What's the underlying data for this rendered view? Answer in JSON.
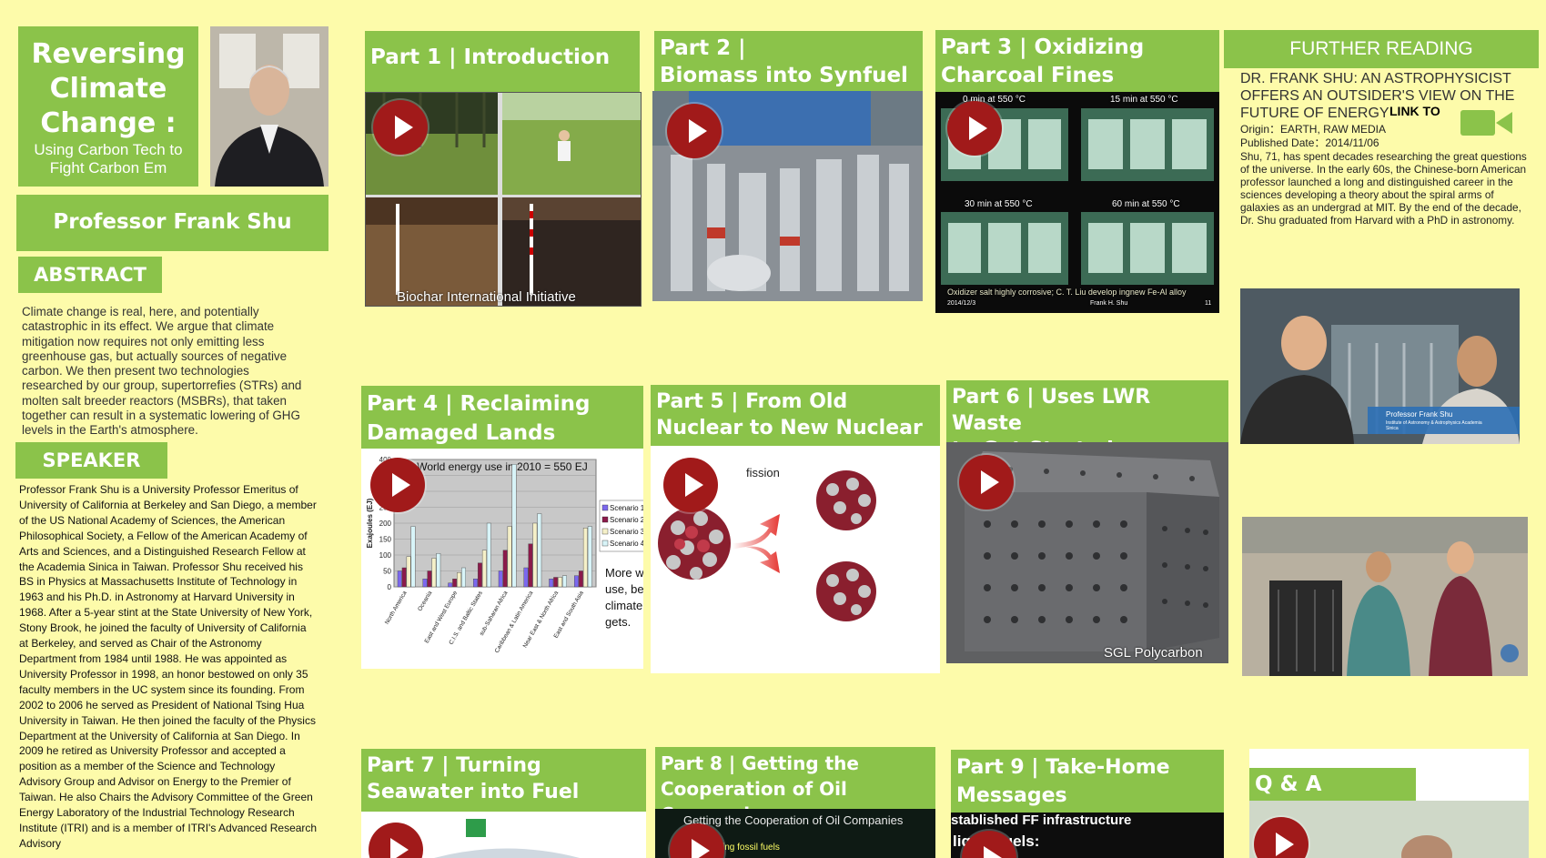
{
  "title": {
    "line1": "Reversing",
    "line2": "Climate",
    "line3": "Change :",
    "subtitle": "Using Carbon Tech to Fight Carbon Em"
  },
  "speaker_name": "Professor Frank Shu",
  "abstract": {
    "heading": "ABSTRACT",
    "text": "Climate change is real, here, and potentially catastrophic in its effect. We argue that climate mitigation now requires not only emitting less greenhouse gas, but actually sources of negative carbon. We then present two technologies researched by our group, supertorrefies (STRs) and molten salt breeder reactors (MSBRs), that taken together can result in a systematic lowering of GHG levels in the Earth's atmosphere."
  },
  "speaker": {
    "heading": "SPEAKER",
    "bio": "Professor Frank Shu is a University Professor Emeritus of University of California at Berkeley and San Diego, a member of the US National Academy of Sciences, the American Philosophical Society, a Fellow of the American Academy of Arts and Sciences, and a Distinguished Research Fellow at the Academia Sinica in Taiwan. Professor Shu received his BS in Physics at Massachusetts Institute of Technology in 1963 and his Ph.D. in Astronomy at Harvard University in 1968. After a 5-year stint at the State University of New York, Stony Brook, he joined the faculty of University of California at Berkeley, and served as Chair of the Astronomy Department from 1984 until 1988. He was appointed as University Professor in 1998, an honor bestowed on only 35 faculty members in the UC system since its founding. From 2002 to 2006 he served as President of National Tsing Hua University in Taiwan. He then joined the faculty of the Physics Department at the University of California at San Diego. In 2009 he retired as University Professor and accepted a position as a member of the Science and Technology Advisory Group and Advisor on Energy to the Premier of Taiwan. He also Chairs the Advisory Committee of the Green Energy Laboratory of the Industrial Technology Research Institute (ITRI) and is a member of ITRI's Advanced Research Advisory"
  },
  "parts": [
    {
      "line1": "Part 1 | Introduction",
      "line2": "",
      "caption": "Biochar International Initiative"
    },
    {
      "line1": "Part 2 |",
      "line2": "Biomass into Synfuel"
    },
    {
      "line1": "Part 3 | Oxidizing",
      "line2": "Charcoal Fines",
      "labels": [
        "0 min at 550 °C",
        "15 min at 550 °C",
        "30 min at 550 °C",
        "60 min at 550 °C"
      ],
      "footnote": "Oxidizer salt highly corrosive; C. T. Liu develop ingnew Fe-Al alloy",
      "footnote_sub1": "2014/12/3",
      "footnote_sub2": "Frank H. Shu",
      "footnote_sub3": "11"
    },
    {
      "line1": "Part 4 | Reclaiming",
      "line2": "Damaged Lands"
    },
    {
      "line1": "Part 5 | From Old",
      "line2": "Nuclear to New Nuclear",
      "fission_label": "fission"
    },
    {
      "line1": "Part 6 | Uses LWR Waste",
      "line2": "to Get Started",
      "caption": "SGL Polycarbon"
    },
    {
      "line1": "Part 7 | Turning",
      "line2": "Seawater into Fuel"
    },
    {
      "line1": "Part 8 | Getting the",
      "line2": "Cooperation of Oil Companies",
      "slide_title": "Getting the Cooperation of Oil Companies",
      "slide_text": "burning fossil fuels"
    },
    {
      "line1": "Part 9 | Take-Home",
      "line2": "Messages",
      "slide_line1": "stablished FF infrastructure",
      "slide_line2": "liquid fuels:"
    },
    {
      "line1": "Q & A",
      "line2": ""
    }
  ],
  "chart_data": {
    "type": "bar",
    "title": "World energy use in 2010 = 550 EJ",
    "ylabel": "Exajoules (EJ)",
    "ylim": [
      0,
      400
    ],
    "yticks": [
      "400",
      "350",
      "300",
      "250",
      "200",
      "150",
      "100",
      "50",
      "0"
    ],
    "categories": [
      "North America",
      "Oceania",
      "East and West Europe",
      "C.I.S. and Baltic States",
      "sub-Saharan Africa",
      "Caribbean & Latin America",
      "Near East & North Africa",
      "East and South Asia"
    ],
    "series": [
      {
        "name": "Scenario 1",
        "color": "#7b68ee",
        "values": [
          50,
          25,
          12,
          25,
          50,
          60,
          25,
          35
        ]
      },
      {
        "name": "Scenario 2",
        "color": "#8b1a4a",
        "values": [
          60,
          50,
          25,
          75,
          115,
          135,
          30,
          50
        ]
      },
      {
        "name": "Scenario 3",
        "color": "#f5f0c8",
        "values": [
          95,
          90,
          45,
          115,
          190,
          200,
          30,
          185
        ]
      },
      {
        "name": "Scenario 4",
        "color": "#d8f4f8",
        "values": [
          190,
          105,
          60,
          200,
          385,
          230,
          35,
          190
        ]
      }
    ],
    "annotation": "More we use, better climate gets."
  },
  "further_reading": {
    "heading": "FURTHER READING",
    "article_title": "DR. FRANK SHU: AN ASTROPHYSICIST OFFERS AN OUTSIDER'S VIEW ON THE FUTURE OF ENERGY",
    "link_label": "LINK TO",
    "origin": "Origin：EARTH, RAW MEDIA",
    "published": "Published Date：2014/11/06",
    "summary": "Shu, 71, has spent decades researching the great questions of the universe. In the early 60s, the Chinese-born American professor launched a long and distinguished career in the sciences developing a theory about the spiral arms of galaxies as an undergrad at MIT. By the end of the decade, Dr. Shu graduated from Harvard with a PhD in astronomy.",
    "lower_third_name": "Professor Frank Shu",
    "lower_third_affil": "Institute of Astronomy & Astrophysics Academia Sinica"
  },
  "colors": {
    "background": "#fdfbaa",
    "accent": "#8bc34a",
    "play": "#a11a1a"
  }
}
